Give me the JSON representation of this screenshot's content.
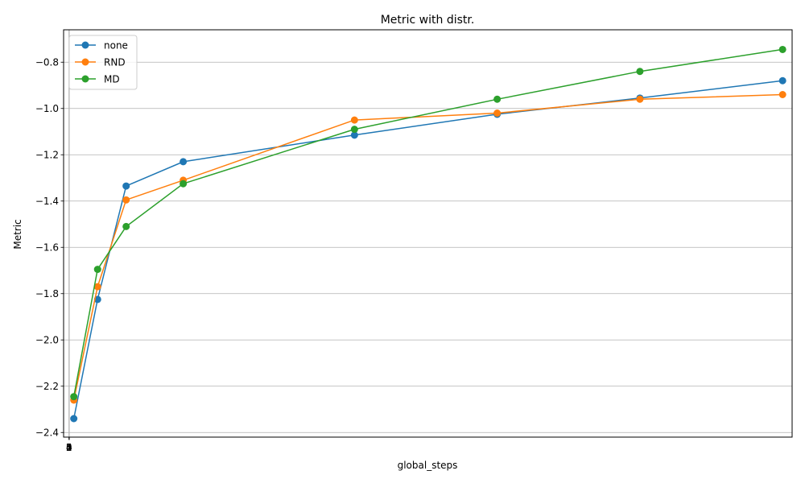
{
  "chart_data": {
    "type": "line",
    "title": "Metric with distr.",
    "xlabel": "global_steps",
    "ylabel": "Metric",
    "grid": true,
    "legend_position": "top-left",
    "xlim": [
      -287,
      38000
    ],
    "ylim": [
      -2.42,
      -0.66
    ],
    "x_ticks": [
      0,
      1,
      2,
      3,
      4,
      5
    ],
    "y_ticks": [
      -2.4,
      -2.2,
      -2.0,
      -1.8,
      -1.6,
      -1.4,
      -1.2,
      -1.0,
      -0.8
    ],
    "y_tick_labels": [
      "−2.4",
      "−2.2",
      "−2.0",
      "−1.8",
      "−1.6",
      "−1.4",
      "−1.2",
      "−1.0",
      "−0.8"
    ],
    "series": [
      {
        "name": "none",
        "color": "#1f77b4",
        "x": [
          250,
          1500,
          3000,
          6000,
          15000,
          22500,
          30000,
          37500
        ],
        "y": [
          -2.34,
          -1.825,
          -1.335,
          -1.23,
          -1.115,
          -1.025,
          -0.955,
          -0.88
        ]
      },
      {
        "name": "RND",
        "color": "#ff7f0e",
        "x": [
          250,
          1500,
          3000,
          6000,
          15000,
          22500,
          30000,
          37500
        ],
        "y": [
          -2.26,
          -1.77,
          -1.395,
          -1.31,
          -1.05,
          -1.02,
          -0.96,
          -0.94
        ]
      },
      {
        "name": "MD",
        "color": "#2ca02c",
        "x": [
          250,
          1500,
          3000,
          6000,
          15000,
          22500,
          30000,
          37500
        ],
        "y": [
          -2.245,
          -1.695,
          -1.51,
          -1.325,
          -1.09,
          -0.96,
          -0.84,
          -0.745
        ]
      }
    ]
  }
}
